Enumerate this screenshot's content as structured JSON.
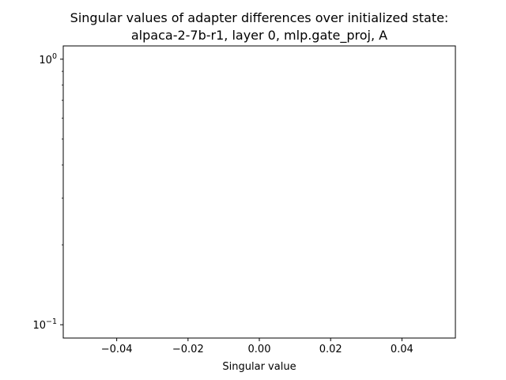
{
  "chart_data": {
    "type": "scatter",
    "title_line1": "Singular values of adapter differences over initialized state:",
    "title_line2": "alpaca-2-7b-r1, layer 0, mlp.gate_proj, A",
    "xlabel": "Singular value",
    "ylabel": "",
    "x_ticks": [
      {
        "value": -0.04,
        "label": "−0.04"
      },
      {
        "value": -0.02,
        "label": "−0.02"
      },
      {
        "value": 0.0,
        "label": "0.00"
      },
      {
        "value": 0.02,
        "label": "0.02"
      },
      {
        "value": 0.04,
        "label": "0.04"
      }
    ],
    "y_major_ticks": [
      {
        "value": 1,
        "base": "10",
        "exp": "0"
      },
      {
        "value": 0.1,
        "base": "10",
        "exp": "−1"
      }
    ],
    "y_minor_ticks": [
      0.2,
      0.3,
      0.4,
      0.5,
      0.6,
      0.7,
      0.8,
      0.9
    ],
    "xlim": [
      -0.055,
      0.055
    ],
    "ylim": [
      0.0891,
      1.122
    ],
    "yscale": "log",
    "grid": false,
    "points": []
  }
}
